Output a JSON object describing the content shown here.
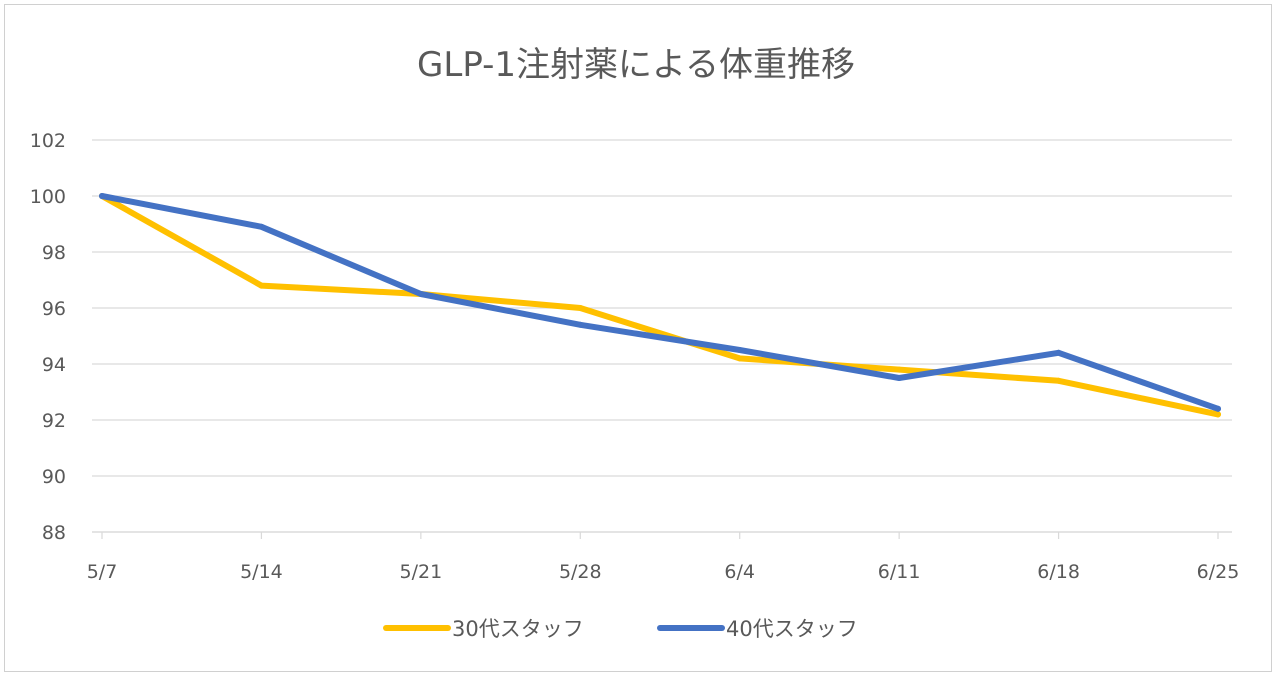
{
  "chart_data": {
    "type": "line",
    "title": "GLP-1注射薬による体重推移",
    "xlabel": "",
    "ylabel": "",
    "categories": [
      "5/7",
      "5/14",
      "5/21",
      "5/28",
      "6/4",
      "6/11",
      "6/18",
      "6/25"
    ],
    "ylim": [
      88,
      102
    ],
    "yticks": [
      88,
      90,
      92,
      94,
      96,
      98,
      100,
      102
    ],
    "grid": true,
    "legend_position": "bottom",
    "series": [
      {
        "name": "30代スタッフ",
        "color": "#FFC000",
        "values": [
          100,
          96.8,
          96.5,
          96.0,
          94.2,
          93.8,
          93.4,
          92.2
        ]
      },
      {
        "name": "40代スタッフ",
        "color": "#4472C4",
        "values": [
          100,
          98.9,
          96.5,
          95.4,
          94.5,
          93.5,
          94.4,
          92.4
        ]
      }
    ]
  }
}
